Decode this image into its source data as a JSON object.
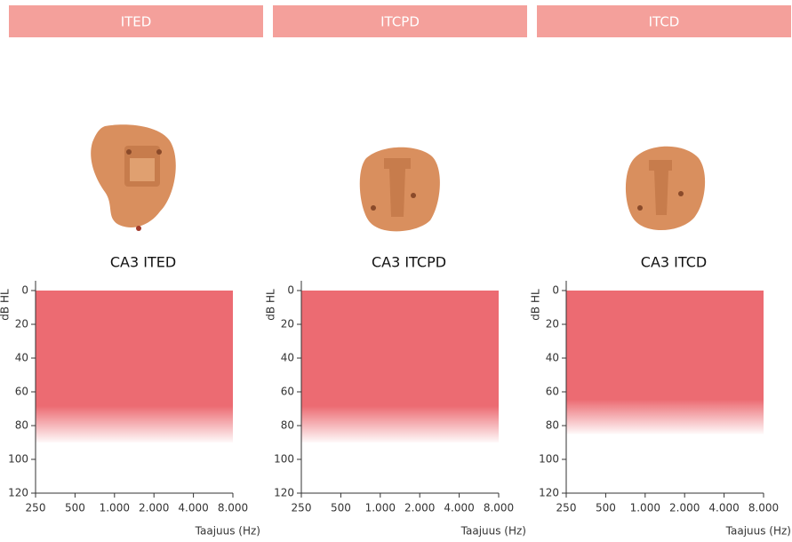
{
  "tabs": [
    "ITED",
    "ITCPD",
    "ITCD"
  ],
  "chart_data": [
    {
      "type": "range",
      "title": "CA3 ITED",
      "ylabel": "dB HL",
      "xlabel": "Taajuus (Hz)",
      "categories": [
        "250",
        "500",
        "1.000",
        "2.000",
        "4.000",
        "8.000"
      ],
      "range_top": [
        0,
        0,
        0,
        0,
        0,
        0
      ],
      "range_bottom": [
        90,
        90,
        90,
        90,
        90,
        90
      ],
      "color": "#ec6b72",
      "ylim": [
        0,
        120
      ],
      "yticks": [
        0,
        20,
        40,
        60,
        80,
        100,
        120
      ],
      "y_inverted": true
    },
    {
      "type": "range",
      "title": "CA3 ITCPD",
      "ylabel": "dB HL",
      "xlabel": "Taajuus (Hz)",
      "categories": [
        "250",
        "500",
        "1.000",
        "2.000",
        "4.000",
        "8.000"
      ],
      "range_top": [
        0,
        0,
        0,
        0,
        0,
        0
      ],
      "range_bottom": [
        90,
        90,
        90,
        90,
        90,
        90
      ],
      "color": "#ec6b72",
      "ylim": [
        0,
        120
      ],
      "yticks": [
        0,
        20,
        40,
        60,
        80,
        100,
        120
      ],
      "y_inverted": true
    },
    {
      "type": "range",
      "title": "CA3 ITCD",
      "ylabel": "dB HL",
      "xlabel": "Taajuus (Hz)",
      "categories": [
        "250",
        "500",
        "1.000",
        "2.000",
        "4.000",
        "8.000"
      ],
      "range_top": [
        0,
        0,
        0,
        0,
        0,
        0
      ],
      "range_bottom": [
        85,
        85,
        85,
        85,
        85,
        85
      ],
      "color": "#ec6b72",
      "ylim": [
        0,
        120
      ],
      "yticks": [
        0,
        20,
        40,
        60,
        80,
        100,
        120
      ],
      "y_inverted": true
    }
  ]
}
